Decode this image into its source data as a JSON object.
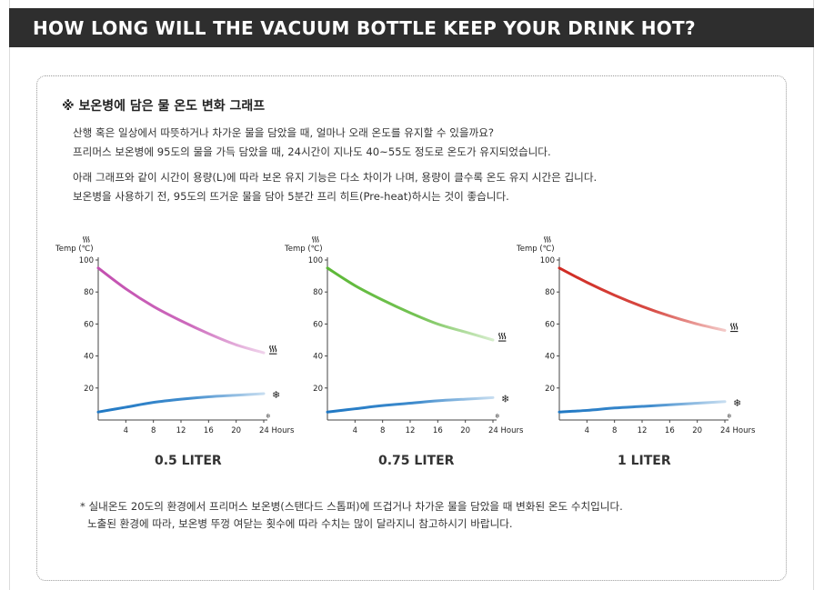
{
  "header": {
    "title": "HOW LONG WILL THE VACUUM BOTTLE KEEP YOUR DRINK HOT?"
  },
  "section": {
    "title": "※ 보온병에 담은 물 온도 변화 그래프",
    "para1": [
      "산행 혹은 일상에서 따뜻하거나 차가운 물을 담았을 때, 얼마나 오래 온도를 유지할 수 있을까요?",
      "프리머스 보온병에 95도의 물을 가득 담았을 때, 24시간이 지나도 40~55도 정도로 온도가 유지되었습니다."
    ],
    "para2": [
      "아래 그래프와 같이 시간이 용량(L)에 따라 보온 유지 기능은 다소 차이가 나며, 용량이 클수록 온도 유지 시간은 깁니다.",
      "보온병을 사용하기 전, 95도의 뜨거운 물을 담아 5분간 프리 히트(Pre-heat)하시는 것이 좋습니다."
    ]
  },
  "footnote": [
    "* 실내온도 20도의 환경에서 프리머스 보온병(스탠다드 스톱퍼)에 뜨겁거나 차가운 물을 담았을 때 변화된 온도 수치입니다.",
    "노출된 환경에 따라, 보온병 뚜껑 여닫는 횟수에 따라 수치는 많이 달라지니 참고하시기 바랍니다."
  ],
  "icons": {
    "hot": "steam-icon",
    "cold": "snowflake-icon"
  },
  "chart_data": [
    {
      "type": "line",
      "title": "0.5 LITER",
      "ylabel": "Temp (℃)",
      "xlabel": "Hours",
      "ylim": [
        0,
        100
      ],
      "xlim": [
        0,
        24
      ],
      "yticks": [
        20,
        40,
        60,
        80,
        100
      ],
      "xticks": [
        4,
        8,
        12,
        16,
        20,
        24
      ],
      "xtick_labels": [
        "4",
        "8",
        "12",
        "16",
        "20",
        "24 Hours"
      ],
      "series": [
        {
          "name": "",
          "color": "#c34fb0",
          "x": [
            0,
            4,
            8,
            12,
            16,
            20,
            24
          ],
          "y": [
            95,
            82,
            71,
            62,
            54,
            47,
            42
          ]
        },
        {
          "name": "",
          "color": "#1f78c4",
          "x": [
            0,
            4,
            8,
            12,
            16,
            20,
            24
          ],
          "y": [
            5,
            8,
            11,
            13,
            14.5,
            15.5,
            16.5
          ]
        }
      ]
    },
    {
      "type": "line",
      "title": "0.75 LITER",
      "ylabel": "Temp (℃)",
      "xlabel": "Hours",
      "ylim": [
        0,
        100
      ],
      "xlim": [
        0,
        24
      ],
      "yticks": [
        20,
        40,
        60,
        80,
        100
      ],
      "xticks": [
        4,
        8,
        12,
        16,
        20,
        24
      ],
      "xtick_labels": [
        "4",
        "8",
        "12",
        "16",
        "20",
        "24 Hours"
      ],
      "series": [
        {
          "name": "",
          "color": "#5cb836",
          "x": [
            0,
            4,
            8,
            12,
            16,
            20,
            24
          ],
          "y": [
            95,
            84,
            75,
            67,
            60,
            55,
            50
          ]
        },
        {
          "name": "",
          "color": "#1f78c4",
          "x": [
            0,
            4,
            8,
            12,
            16,
            20,
            24
          ],
          "y": [
            5,
            7,
            9,
            10.5,
            12,
            13,
            14
          ]
        }
      ]
    },
    {
      "type": "line",
      "title": "1 LITER",
      "ylabel": "Temp (℃)",
      "xlabel": "Hours",
      "ylim": [
        0,
        100
      ],
      "xlim": [
        0,
        24
      ],
      "yticks": [
        20,
        40,
        60,
        80,
        100
      ],
      "xticks": [
        4,
        8,
        12,
        16,
        20,
        24
      ],
      "xtick_labels": [
        "4",
        "8",
        "12",
        "16",
        "20",
        "24 Hours"
      ],
      "series": [
        {
          "name": "",
          "color": "#d02a22",
          "x": [
            0,
            4,
            8,
            12,
            16,
            20,
            24
          ],
          "y": [
            95,
            86,
            78,
            71,
            65,
            60,
            56
          ]
        },
        {
          "name": "",
          "color": "#1f78c4",
          "x": [
            0,
            4,
            8,
            12,
            16,
            20,
            24
          ],
          "y": [
            5,
            6,
            7.5,
            8.5,
            9.5,
            10.5,
            11.5
          ]
        }
      ]
    }
  ]
}
